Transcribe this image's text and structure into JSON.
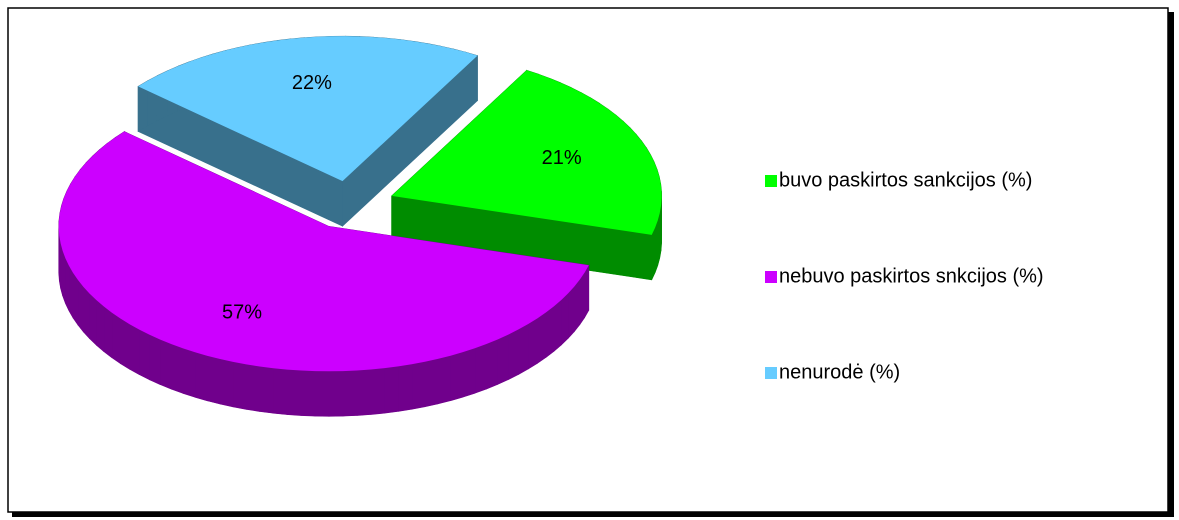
{
  "chart_data": {
    "type": "pie",
    "categories": [
      "buvo paskirtos sankcijos (%)",
      "nebuvo paskirtos snkcijos (%)",
      "nenurodė (%)"
    ],
    "values": [
      21,
      57,
      22
    ],
    "value_labels": [
      "21%",
      "57%",
      "22%"
    ],
    "colors": [
      "#00ff00",
      "#cc00ff",
      "#66ccff"
    ],
    "legend": "right"
  }
}
